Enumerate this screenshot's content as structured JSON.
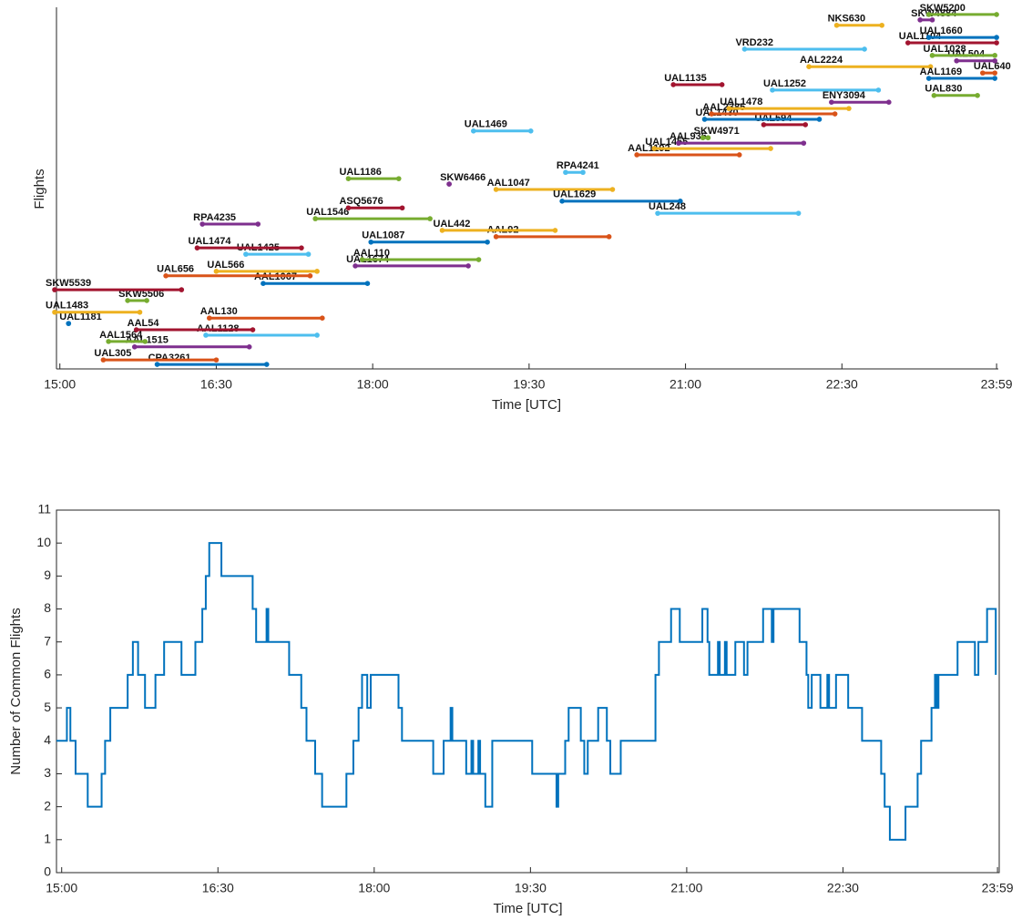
{
  "chart_data": [
    {
      "type": "gantt",
      "xlabel": "Time [UTC]",
      "ylabel": "Flights",
      "xlim": [
        897,
        1440
      ],
      "ylim": [
        0,
        80
      ],
      "xticks": [
        {
          "value": 900,
          "label": "15:00"
        },
        {
          "value": 990,
          "label": "16:30"
        },
        {
          "value": 1080,
          "label": "18:00"
        },
        {
          "value": 1170,
          "label": "19:30"
        },
        {
          "value": 1260,
          "label": "21:00"
        },
        {
          "value": 1350,
          "label": "22:30"
        },
        {
          "value": 1439,
          "label": "23:59"
        }
      ],
      "flights": [
        {
          "name": "CPA3261",
          "start": 956,
          "end": 1019,
          "y": 1,
          "color": "#0072BD"
        },
        {
          "name": "UAL305",
          "start": 925,
          "end": 990,
          "y": 2,
          "color": "#D95319"
        },
        {
          "name": "AAL1515",
          "start": 943,
          "end": 1009,
          "y": 4.9,
          "color": "#7E2F8E"
        },
        {
          "name": "AAL1564",
          "start": 928,
          "end": 949,
          "y": 6.1,
          "color": "#77AC30"
        },
        {
          "name": "AAL1128",
          "start": 984,
          "end": 1048,
          "y": 7.5,
          "color": "#4DBEEE"
        },
        {
          "name": "AAL54",
          "start": 944,
          "end": 1011,
          "y": 8.7,
          "color": "#A2142F"
        },
        {
          "name": "AAL130",
          "start": 986,
          "end": 1051,
          "y": 11.3,
          "color": "#D95319"
        },
        {
          "name": "UAL1181",
          "start": 905,
          "end": 905,
          "y": 10.1,
          "color": "#0072BD"
        },
        {
          "name": "UAL1483",
          "start": 897,
          "end": 946,
          "y": 12.6,
          "color": "#EDB120"
        },
        {
          "name": "SKW5506",
          "start": 939,
          "end": 950,
          "y": 15.2,
          "color": "#77AC30"
        },
        {
          "name": "SKW5539",
          "start": 897,
          "end": 970,
          "y": 17.6,
          "color": "#A2142F"
        },
        {
          "name": "AAL1067",
          "start": 1017,
          "end": 1077,
          "y": 19,
          "color": "#0072BD"
        },
        {
          "name": "UAL656",
          "start": 961,
          "end": 1044,
          "y": 20.7,
          "color": "#D95319"
        },
        {
          "name": "UAL566",
          "start": 990,
          "end": 1048,
          "y": 21.7,
          "color": "#EDB120"
        },
        {
          "name": "UAL1425",
          "start": 1007,
          "end": 1043,
          "y": 25.5,
          "color": "#4DBEEE"
        },
        {
          "name": "UAL1474",
          "start": 979,
          "end": 1039,
          "y": 26.9,
          "color": "#A2142F"
        },
        {
          "name": "RPA4235",
          "start": 982,
          "end": 1014,
          "y": 32.2,
          "color": "#7E2F8E"
        },
        {
          "name": "UAL1674",
          "start": 1070,
          "end": 1135,
          "y": 22.9,
          "color": "#7E2F8E"
        },
        {
          "name": "AAL110",
          "start": 1074,
          "end": 1141,
          "y": 24.3,
          "color": "#77AC30"
        },
        {
          "name": "UAL1087",
          "start": 1079,
          "end": 1146,
          "y": 28.2,
          "color": "#0072BD"
        },
        {
          "name": "AAL92",
          "start": 1151,
          "end": 1216,
          "y": 29.4,
          "color": "#D95319"
        },
        {
          "name": "UAL442",
          "start": 1120,
          "end": 1185,
          "y": 30.8,
          "color": "#EDB120"
        },
        {
          "name": "UAL1546",
          "start": 1047,
          "end": 1113,
          "y": 33.4,
          "color": "#77AC30"
        },
        {
          "name": "ASQ5676",
          "start": 1066,
          "end": 1097,
          "y": 35.8,
          "color": "#A2142F"
        },
        {
          "name": "UAL1186",
          "start": 1066,
          "end": 1095,
          "y": 42.3,
          "color": "#77AC30"
        },
        {
          "name": "SKW6466",
          "start": 1124,
          "end": 1124,
          "y": 41.1,
          "color": "#7E2F8E"
        },
        {
          "name": "AAL1047",
          "start": 1151,
          "end": 1218,
          "y": 39.9,
          "color": "#EDB120"
        },
        {
          "name": "UAL1629",
          "start": 1189,
          "end": 1257,
          "y": 37.3,
          "color": "#0072BD"
        },
        {
          "name": "UAL248",
          "start": 1244,
          "end": 1325,
          "y": 34.6,
          "color": "#4DBEEE"
        },
        {
          "name": "UAL1469",
          "start": 1138,
          "end": 1171,
          "y": 52.9,
          "color": "#4DBEEE"
        },
        {
          "name": "RPA4241",
          "start": 1191,
          "end": 1201,
          "y": 43.7,
          "color": "#4DBEEE"
        },
        {
          "name": "AAL1192",
          "start": 1232,
          "end": 1291,
          "y": 47.6,
          "color": "#D95319"
        },
        {
          "name": "UAL1455",
          "start": 1242,
          "end": 1309,
          "y": 49,
          "color": "#EDB120"
        },
        {
          "name": "AAL936",
          "start": 1256,
          "end": 1328,
          "y": 50.2,
          "color": "#7E2F8E"
        },
        {
          "name": "SKW4971",
          "start": 1270,
          "end": 1273,
          "y": 51.4,
          "color": "#77AC30"
        },
        {
          "name": "UAL594",
          "start": 1305,
          "end": 1329,
          "y": 54.3,
          "color": "#A2142F"
        },
        {
          "name": "UAL1430",
          "start": 1271,
          "end": 1337,
          "y": 55.5,
          "color": "#0072BD"
        },
        {
          "name": "AAL2385",
          "start": 1275,
          "end": 1346,
          "y": 56.7,
          "color": "#D95319"
        },
        {
          "name": "UAL1478",
          "start": 1285,
          "end": 1354,
          "y": 57.9,
          "color": "#EDB120"
        },
        {
          "name": "ENY3094",
          "start": 1344,
          "end": 1377,
          "y": 59.3,
          "color": "#7E2F8E"
        },
        {
          "name": "UAL1252",
          "start": 1310,
          "end": 1371,
          "y": 62,
          "color": "#4DBEEE"
        },
        {
          "name": "UAL1135",
          "start": 1253,
          "end": 1281,
          "y": 63.2,
          "color": "#A2142F"
        },
        {
          "name": "AAL2224",
          "start": 1331,
          "end": 1401,
          "y": 67.2,
          "color": "#EDB120"
        },
        {
          "name": "VRD232",
          "start": 1294,
          "end": 1363,
          "y": 71.1,
          "color": "#4DBEEE"
        },
        {
          "name": "NKS630",
          "start": 1347,
          "end": 1373,
          "y": 76.4,
          "color": "#EDB120"
        },
        {
          "name": "UAL830",
          "start": 1403,
          "end": 1428,
          "y": 60.8,
          "color": "#77AC30"
        },
        {
          "name": "AAL1169",
          "start": 1400,
          "end": 1438,
          "y": 64.6,
          "color": "#0072BD"
        },
        {
          "name": "UAL640",
          "start": 1431,
          "end": 1438,
          "y": 65.8,
          "color": "#D95319"
        },
        {
          "name": "UAL504",
          "start": 1416,
          "end": 1438,
          "y": 68.5,
          "color": "#7E2F8E"
        },
        {
          "name": "UAL1028",
          "start": 1402,
          "end": 1438,
          "y": 69.7,
          "color": "#77AC30"
        },
        {
          "name": "UAL1104",
          "start": 1388,
          "end": 1439,
          "y": 72.5,
          "color": "#A2142F"
        },
        {
          "name": "UAL1660",
          "start": 1400,
          "end": 1439,
          "y": 73.7,
          "color": "#0072BD"
        },
        {
          "name": "SKW4884",
          "start": 1395,
          "end": 1402,
          "y": 77.6,
          "color": "#7E2F8E"
        },
        {
          "name": "SKW5200",
          "start": 1400,
          "end": 1439,
          "y": 78.8,
          "color": "#77AC30"
        }
      ]
    },
    {
      "type": "line",
      "step": true,
      "xlabel": "Time [UTC]",
      "ylabel": "Number of Common Flights",
      "color": "#0072BD",
      "xlim": [
        897,
        1440
      ],
      "ylim": [
        0,
        11
      ],
      "xticks": [
        {
          "value": 900,
          "label": "15:00"
        },
        {
          "value": 990,
          "label": "16:30"
        },
        {
          "value": 1080,
          "label": "18:00"
        },
        {
          "value": 1170,
          "label": "19:30"
        },
        {
          "value": 1260,
          "label": "21:00"
        },
        {
          "value": 1350,
          "label": "22:30"
        },
        {
          "value": 1439,
          "label": "23:59"
        }
      ],
      "yticks": [
        0,
        1,
        2,
        3,
        4,
        5,
        6,
        7,
        8,
        9,
        10,
        11
      ],
      "x": [
        897,
        903,
        905,
        908,
        915,
        923,
        925,
        928,
        938,
        941,
        944,
        948,
        954,
        959,
        969,
        977,
        981,
        983,
        985,
        992,
        1010,
        1012,
        1018,
        1019,
        1031,
        1038,
        1041,
        1046,
        1050,
        1064,
        1068,
        1071,
        1073,
        1076,
        1078,
        1094,
        1096,
        1114,
        1120,
        1124,
        1125,
        1133,
        1136,
        1137,
        1140,
        1141,
        1144,
        1148,
        1171,
        1185,
        1186,
        1190,
        1192,
        1199,
        1201,
        1203,
        1209,
        1214,
        1216,
        1222,
        1242,
        1244,
        1251,
        1256,
        1269,
        1272,
        1273,
        1278,
        1279,
        1282,
        1283,
        1288,
        1293,
        1295,
        1304,
        1309,
        1310,
        1325,
        1329,
        1330,
        1332,
        1337,
        1341,
        1342,
        1346,
        1353,
        1361,
        1372,
        1374,
        1377,
        1386,
        1393,
        1395,
        1401,
        1403,
        1404,
        1405,
        1416,
        1426,
        1428,
        1433,
        1438
      ],
      "values": [
        4,
        5,
        4,
        3,
        2,
        3,
        4,
        5,
        6,
        7,
        6,
        5,
        6,
        7,
        6,
        7,
        8,
        9,
        10,
        9,
        8,
        7,
        8,
        7,
        6,
        5,
        4,
        3,
        2,
        3,
        4,
        5,
        6,
        5,
        6,
        5,
        4,
        3,
        4,
        5,
        4,
        3,
        4,
        3,
        4,
        3,
        2,
        4,
        3,
        2,
        3,
        4,
        5,
        4,
        3,
        4,
        5,
        4,
        3,
        4,
        6,
        7,
        8,
        7,
        8,
        7,
        6,
        7,
        6,
        7,
        6,
        7,
        6,
        7,
        8,
        7,
        8,
        7,
        6,
        5,
        6,
        5,
        6,
        5,
        6,
        5,
        4,
        3,
        2,
        1,
        2,
        3,
        4,
        5,
        6,
        5,
        6,
        7,
        6,
        7,
        8,
        6
      ]
    }
  ]
}
